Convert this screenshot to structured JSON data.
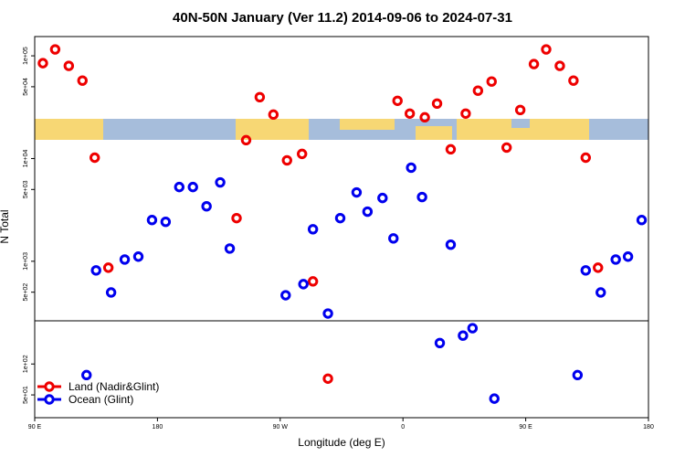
{
  "chart_data": {
    "type": "scatter",
    "title": "40N-50N January (Ver 11.2)   2014-09-06 to 2024-07-31",
    "xlabel": "Longitude (deg E)",
    "ylabel": "N Total",
    "xlim": [
      90,
      540
    ],
    "xticks": [
      {
        "value": 90,
        "label": "90 E"
      },
      180,
      {
        "value": 270,
        "label": "90 W"
      },
      {
        "value": 360,
        "label": "0"
      },
      {
        "value": 450,
        "label": "90 E"
      },
      {
        "value": 540,
        "label": "180"
      }
    ],
    "ylim": [
      30,
      154000
    ],
    "ylog": true,
    "yticks": [
      {
        "value": 100000,
        "label": "1e+05"
      },
      {
        "value": 50000,
        "label": "5e+04"
      },
      {
        "value": 10000,
        "label": "1e+04"
      },
      {
        "value": 5000,
        "label": "5e+03"
      },
      {
        "value": 1000,
        "label": "1e+03"
      },
      {
        "value": 500,
        "label": "5e+02"
      },
      {
        "value": 100,
        "label": "1e+02"
      },
      {
        "value": 50,
        "label": "5e+01"
      }
    ],
    "legend": "bottom-left",
    "series": [
      {
        "name": "Land (Nadir&Glint)",
        "color": "#ee0000",
        "x": [
          96,
          105,
          115,
          125,
          134,
          144,
          238,
          245,
          255,
          265,
          275,
          286,
          294,
          305,
          356,
          365,
          376,
          385,
          395,
          406,
          415,
          425,
          436,
          446,
          456,
          465,
          475,
          485,
          494,
          503
        ],
        "values": [
          84800,
          115500,
          79800,
          57400,
          10200,
          866,
          2630,
          15100,
          39600,
          26800,
          9600,
          11100,
          637,
          72,
          36500,
          27400,
          25200,
          34300,
          12300,
          27400,
          45800,
          56200,
          12800,
          29700,
          83100,
          115500,
          79800,
          57400,
          10200,
          866
        ]
      },
      {
        "name": "Ocean (Glint)",
        "color": "#0000ee",
        "x": [
          128,
          135,
          146,
          156,
          166,
          176,
          186,
          196,
          206,
          216,
          226,
          233,
          274,
          287,
          294,
          305,
          314,
          326,
          334,
          345,
          353,
          366,
          374,
          387,
          395,
          404,
          411,
          427,
          488,
          494,
          505,
          516,
          525,
          535
        ],
        "values": [
          78,
          815,
          497,
          1040,
          1110,
          2520,
          2420,
          5280,
          5280,
          3430,
          5860,
          1330,
          467,
          599,
          2050,
          310,
          2630,
          4680,
          3040,
          4130,
          1670,
          8150,
          4220,
          160,
          1450,
          189,
          223,
          46,
          78,
          815,
          497,
          1040,
          1110,
          2520
        ]
      }
    ]
  }
}
